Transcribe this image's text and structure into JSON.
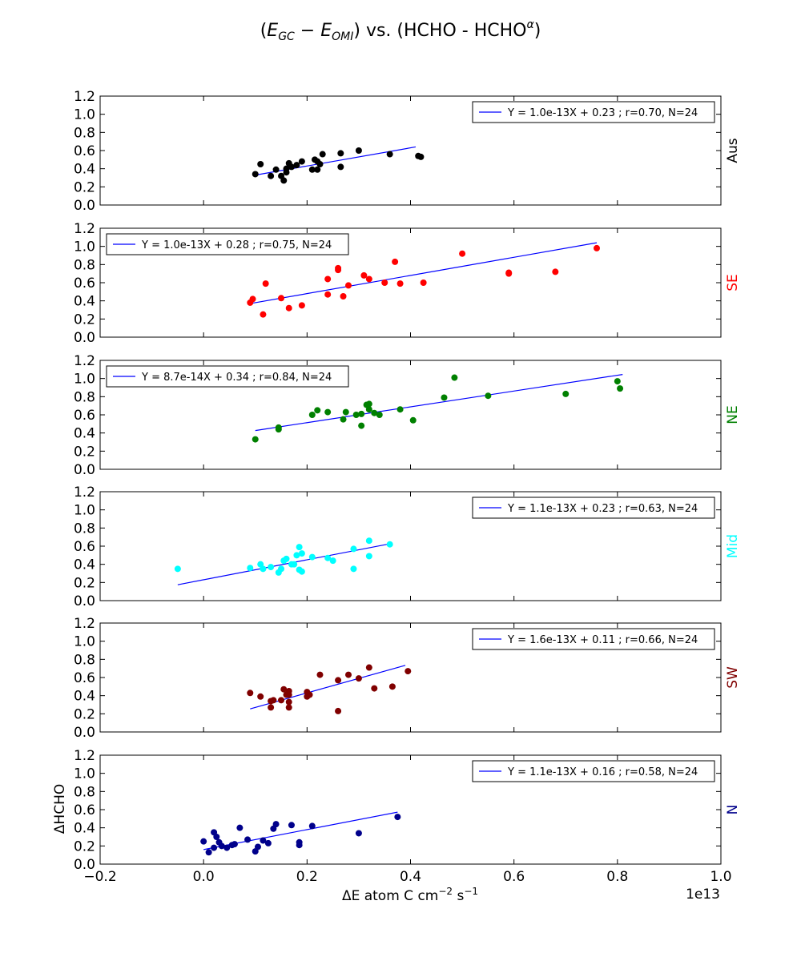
{
  "figure": {
    "title": "(E_GC − E_OMI) vs. (HCHO - HCHO^α)",
    "xlabel": "ΔE atom C cm⁻² s⁻¹",
    "ylabel": "ΔHCHO",
    "offset_text": "1e13"
  },
  "chart_data": [
    {
      "type": "scatter",
      "region": "Aus",
      "color": "#000000",
      "legend": "Y = 1.0e-13X + 0.23 ; r=0.70, N=24",
      "legend_pos": "top-right",
      "xlim": [
        -0.2,
        1.0
      ],
      "ylim": [
        0.0,
        1.2
      ],
      "fit": {
        "slope": 1.0,
        "intercept": 0.23,
        "x_range": [
          0.1,
          0.41
        ]
      },
      "x": [
        0.1,
        0.11,
        0.13,
        0.14,
        0.15,
        0.155,
        0.16,
        0.16,
        0.165,
        0.17,
        0.18,
        0.19,
        0.21,
        0.215,
        0.22,
        0.22,
        0.225,
        0.23,
        0.265,
        0.265,
        0.3,
        0.36,
        0.415,
        0.42
      ],
      "y": [
        0.34,
        0.45,
        0.32,
        0.39,
        0.32,
        0.27,
        0.4,
        0.36,
        0.46,
        0.42,
        0.44,
        0.48,
        0.39,
        0.5,
        0.48,
        0.39,
        0.45,
        0.56,
        0.57,
        0.42,
        0.6,
        0.56,
        0.54,
        0.53
      ]
    },
    {
      "type": "scatter",
      "region": "SE",
      "color": "#ff0000",
      "legend": "Y = 1.0e-13X + 0.28 ; r=0.75, N=24",
      "legend_pos": "top-left",
      "xlim": [
        -0.2,
        1.0
      ],
      "ylim": [
        0.0,
        1.2
      ],
      "fit": {
        "slope": 1.0,
        "intercept": 0.28,
        "x_range": [
          0.09,
          0.76
        ]
      },
      "x": [
        0.09,
        0.095,
        0.115,
        0.12,
        0.15,
        0.165,
        0.19,
        0.24,
        0.24,
        0.26,
        0.26,
        0.27,
        0.28,
        0.31,
        0.32,
        0.35,
        0.37,
        0.38,
        0.425,
        0.5,
        0.59,
        0.59,
        0.68,
        0.76
      ],
      "y": [
        0.38,
        0.42,
        0.25,
        0.59,
        0.43,
        0.32,
        0.35,
        0.64,
        0.47,
        0.76,
        0.74,
        0.45,
        0.57,
        0.68,
        0.64,
        0.6,
        0.83,
        0.59,
        0.6,
        0.92,
        0.71,
        0.7,
        0.72,
        0.98
      ]
    },
    {
      "type": "scatter",
      "region": "NE",
      "color": "#008000",
      "legend": "Y = 8.7e-14X + 0.34 ; r=0.84, N=24",
      "legend_pos": "top-left",
      "xlim": [
        -0.2,
        1.0
      ],
      "ylim": [
        0.0,
        1.2
      ],
      "fit": {
        "slope": 0.87,
        "intercept": 0.34,
        "x_range": [
          0.1,
          0.81
        ]
      },
      "x": [
        0.1,
        0.145,
        0.145,
        0.21,
        0.22,
        0.24,
        0.27,
        0.275,
        0.295,
        0.305,
        0.305,
        0.315,
        0.32,
        0.32,
        0.33,
        0.34,
        0.38,
        0.405,
        0.465,
        0.485,
        0.55,
        0.7,
        0.8,
        0.805
      ],
      "y": [
        0.33,
        0.44,
        0.46,
        0.6,
        0.65,
        0.63,
        0.55,
        0.63,
        0.6,
        0.61,
        0.48,
        0.71,
        0.72,
        0.66,
        0.62,
        0.6,
        0.66,
        0.54,
        0.79,
        1.01,
        0.81,
        0.83,
        0.97,
        0.89
      ]
    },
    {
      "type": "scatter",
      "region": "Mid",
      "color": "#00ffff",
      "legend": "Y = 1.1e-13X + 0.23 ; r=0.63, N=24",
      "legend_pos": "top-right",
      "xlim": [
        -0.2,
        1.0
      ],
      "ylim": [
        0.0,
        1.2
      ],
      "fit": {
        "slope": 1.1,
        "intercept": 0.23,
        "x_range": [
          -0.05,
          0.36
        ]
      },
      "x": [
        -0.05,
        0.09,
        0.11,
        0.115,
        0.13,
        0.145,
        0.15,
        0.155,
        0.16,
        0.17,
        0.175,
        0.18,
        0.185,
        0.185,
        0.19,
        0.19,
        0.21,
        0.24,
        0.25,
        0.29,
        0.29,
        0.32,
        0.32,
        0.36
      ],
      "y": [
        0.35,
        0.36,
        0.4,
        0.35,
        0.37,
        0.31,
        0.35,
        0.44,
        0.46,
        0.4,
        0.4,
        0.5,
        0.34,
        0.59,
        0.32,
        0.52,
        0.48,
        0.47,
        0.44,
        0.57,
        0.35,
        0.66,
        0.49,
        0.62
      ]
    },
    {
      "type": "scatter",
      "region": "SW",
      "color": "#800000",
      "legend": "Y = 1.6e-13X + 0.11 ; r=0.66, N=24",
      "legend_pos": "top-right",
      "xlim": [
        -0.2,
        1.0
      ],
      "ylim": [
        0.0,
        1.2
      ],
      "fit": {
        "slope": 1.6,
        "intercept": 0.11,
        "x_range": [
          0.09,
          0.39
        ]
      },
      "x": [
        0.09,
        0.11,
        0.13,
        0.13,
        0.135,
        0.15,
        0.155,
        0.16,
        0.165,
        0.165,
        0.165,
        0.2,
        0.2,
        0.205,
        0.225,
        0.26,
        0.26,
        0.28,
        0.3,
        0.32,
        0.33,
        0.365,
        0.395,
        0.165
      ],
      "y": [
        0.43,
        0.39,
        0.34,
        0.27,
        0.35,
        0.35,
        0.47,
        0.41,
        0.33,
        0.27,
        0.45,
        0.44,
        0.39,
        0.41,
        0.63,
        0.57,
        0.23,
        0.63,
        0.59,
        0.71,
        0.48,
        0.5,
        0.67,
        0.41
      ]
    },
    {
      "type": "scatter",
      "region": "N",
      "color": "#00008b",
      "legend": "Y = 1.1e-13X + 0.16 ; r=0.58, N=24",
      "legend_pos": "top-right",
      "xlim": [
        -0.2,
        1.0
      ],
      "ylim": [
        0.0,
        1.2
      ],
      "fit": {
        "slope": 1.1,
        "intercept": 0.16,
        "x_range": [
          0.0,
          0.375
        ]
      },
      "x": [
        0.0,
        0.01,
        0.02,
        0.02,
        0.025,
        0.03,
        0.035,
        0.045,
        0.055,
        0.06,
        0.07,
        0.085,
        0.1,
        0.105,
        0.115,
        0.125,
        0.135,
        0.14,
        0.17,
        0.185,
        0.185,
        0.21,
        0.3,
        0.375
      ],
      "y": [
        0.25,
        0.13,
        0.35,
        0.18,
        0.3,
        0.24,
        0.2,
        0.18,
        0.21,
        0.22,
        0.4,
        0.27,
        0.14,
        0.19,
        0.26,
        0.23,
        0.39,
        0.44,
        0.43,
        0.24,
        0.21,
        0.42,
        0.34,
        0.52
      ]
    }
  ]
}
